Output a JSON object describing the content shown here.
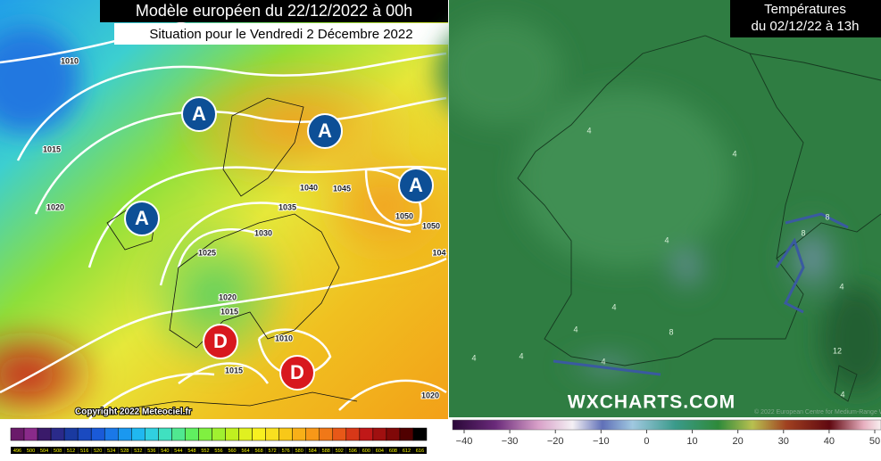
{
  "left_map": {
    "title": "Modèle européen du 22/12/2022 à 00h",
    "subtitle": "Situation pour le Vendredi 2 Décembre 2022",
    "isobar_labels": [
      "1010",
      "1015",
      "1020",
      "1040",
      "1045",
      "1035",
      "1030",
      "1025",
      "1050",
      "1050",
      "104",
      "1020",
      "1015",
      "1010",
      "1015",
      "1020"
    ],
    "high_labels": [
      "A",
      "A",
      "A",
      "A"
    ],
    "low_labels": [
      "D",
      "D"
    ],
    "copyright": "Copyright 2022 Meteociel.fr",
    "scale_labels": [
      "496",
      "500",
      "504",
      "508",
      "512",
      "516",
      "520",
      "524",
      "528",
      "532",
      "536",
      "540",
      "544",
      "548",
      "552",
      "556",
      "560",
      "564",
      "568",
      "572",
      "576",
      "580",
      "584",
      "588",
      "592",
      "596",
      "600",
      "604",
      "608",
      "612",
      "616"
    ]
  },
  "right_map": {
    "title_line1": "Températures",
    "title_line2": "du 02/12/22 à 13h",
    "watermark": "WXCHARTS.COM",
    "credit": "© 2022 European Centre for Medium-Range Weather Forecasts",
    "isotherm_labels": [
      "4",
      "4",
      "4",
      "4",
      "4",
      "4",
      "4",
      "4",
      "4",
      "4",
      "8",
      "8",
      "8",
      "12"
    ],
    "colorbar_ticks": [
      "−40",
      "−30",
      "−20",
      "−10",
      "0",
      "10",
      "20",
      "30",
      "40",
      "50"
    ]
  }
}
